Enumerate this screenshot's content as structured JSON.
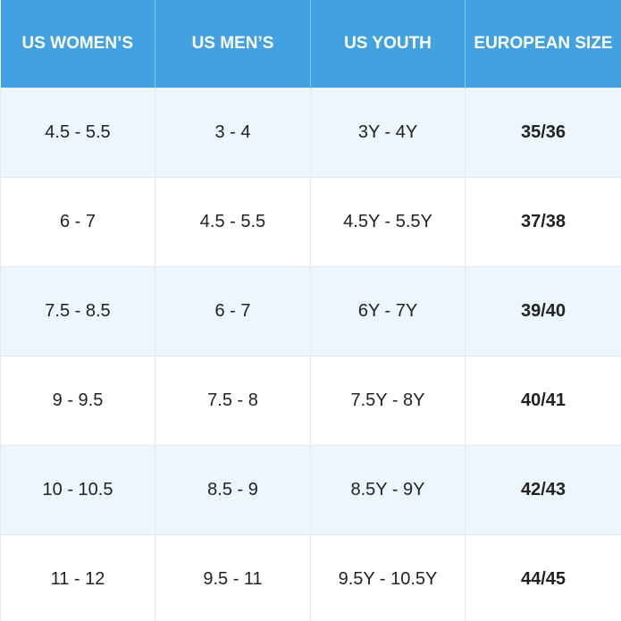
{
  "table": {
    "headers": [
      "US WOMEN’S",
      "US MEN’S",
      "US YOUTH",
      "EUROPEAN SIZE"
    ],
    "rows": [
      [
        "4.5 - 5.5",
        "3 - 4",
        "3Y - 4Y",
        "35/36"
      ],
      [
        "6 - 7",
        "4.5 - 5.5",
        "4.5Y - 5.5Y",
        "37/38"
      ],
      [
        "7.5 - 8.5",
        "6 - 7",
        "6Y - 7Y",
        "39/40"
      ],
      [
        "9 - 9.5",
        "7.5 - 8",
        "7.5Y - 8Y",
        "40/41"
      ],
      [
        "10 - 10.5",
        "8.5 - 9",
        "8.5Y - 9Y",
        "42/43"
      ],
      [
        "11 - 12",
        "9.5 - 11",
        "9.5Y - 10.5Y",
        "44/45"
      ]
    ]
  }
}
